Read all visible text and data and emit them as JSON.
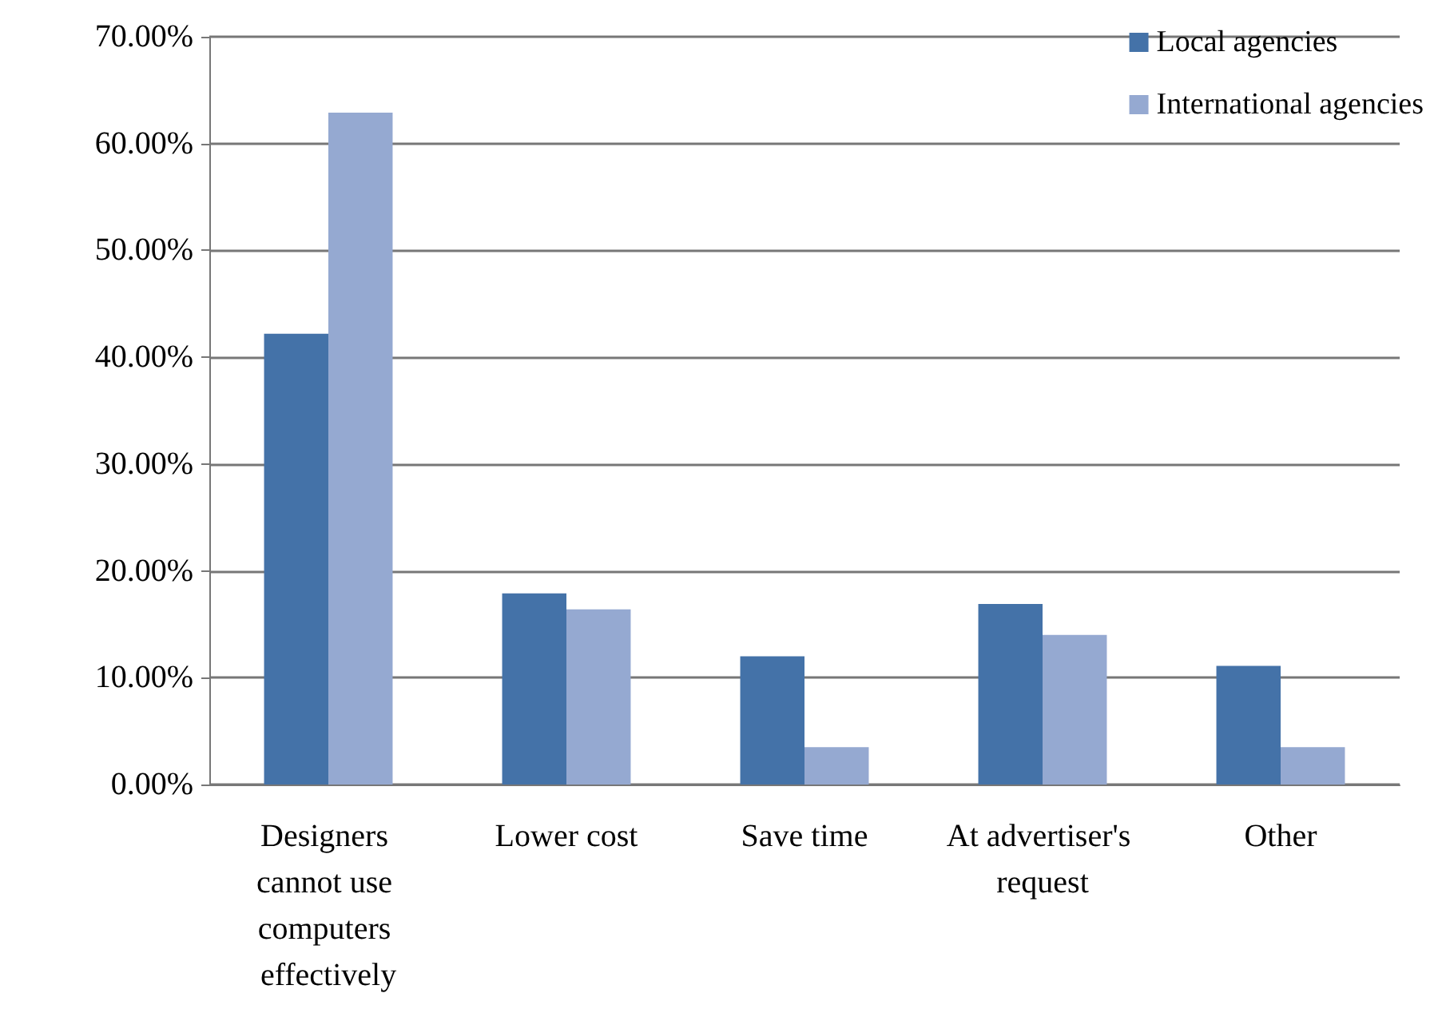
{
  "chart_data": {
    "type": "bar",
    "categories": [
      "Designers cannot use computers effectively",
      "Lower cost",
      "Save time",
      "At advertiser's request",
      "Other"
    ],
    "series": [
      {
        "name": "Local agencies",
        "color": "#4472a8",
        "values": [
          42.2,
          17.9,
          12.0,
          16.9,
          11.1
        ]
      },
      {
        "name": "International agencies",
        "color": "#95a9d1",
        "values": [
          62.9,
          16.4,
          3.5,
          14.0,
          3.5
        ]
      }
    ],
    "ylim": [
      0,
      70
    ],
    "yticks": [
      {
        "value": 0,
        "label": "0.00%"
      },
      {
        "value": 10,
        "label": "10.00%"
      },
      {
        "value": 20,
        "label": "20.00%"
      },
      {
        "value": 30,
        "label": "30.00%"
      },
      {
        "value": 40,
        "label": "40.00%"
      },
      {
        "value": 50,
        "label": "50.00%"
      },
      {
        "value": 60,
        "label": "60.00%"
      },
      {
        "value": 70,
        "label": "70.00%"
      }
    ],
    "grid": "y",
    "legend": "top right"
  }
}
